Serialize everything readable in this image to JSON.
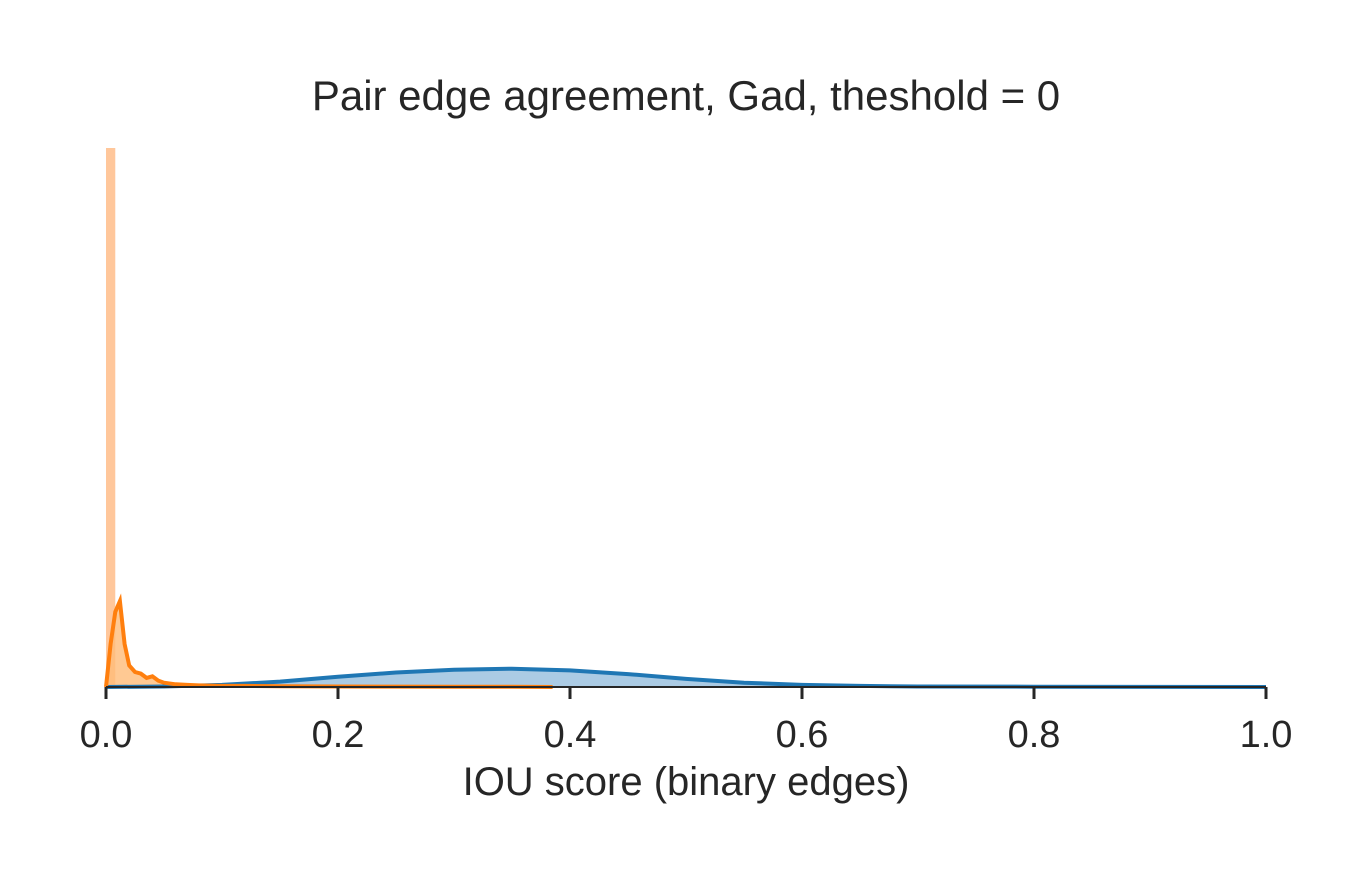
{
  "chart_data": {
    "type": "area",
    "title": "Pair edge agreement, Gad, theshold = 0",
    "xlabel": "IOU score (binary edges)",
    "ylabel": "",
    "xlim": [
      0.0,
      1.0
    ],
    "ylim": [
      0,
      1
    ],
    "grid": false,
    "x_ticks": [
      "0.0",
      "0.2",
      "0.4",
      "0.6",
      "0.8",
      "1.0"
    ],
    "colors": {
      "series_a": "#1f77b4",
      "series_b": "#ff7f0e",
      "series_a_fill": "#a6c8e3",
      "series_b_fill": "#ffbb78",
      "series_b_hist": "#ffc79b"
    },
    "series": [
      {
        "name": "series_a",
        "kind": "kde",
        "x": [
          0.0,
          0.05,
          0.1,
          0.15,
          0.2,
          0.25,
          0.3,
          0.35,
          0.4,
          0.45,
          0.5,
          0.55,
          0.6,
          0.65,
          0.7,
          0.8,
          0.9,
          1.0
        ],
        "y": [
          0.0,
          0.001,
          0.004,
          0.01,
          0.019,
          0.027,
          0.032,
          0.034,
          0.031,
          0.024,
          0.015,
          0.008,
          0.004,
          0.002,
          0.001,
          0.0005,
          0.0002,
          0.0
        ]
      },
      {
        "name": "series_b",
        "kind": "kde",
        "x": [
          0.0,
          0.004,
          0.008,
          0.012,
          0.016,
          0.02,
          0.025,
          0.03,
          0.035,
          0.04,
          0.045,
          0.05,
          0.06,
          0.07,
          0.08,
          0.1,
          0.12,
          0.15,
          0.2,
          0.25,
          0.3,
          0.35,
          0.385
        ],
        "y": [
          0.0,
          0.08,
          0.14,
          0.16,
          0.08,
          0.04,
          0.028,
          0.025,
          0.017,
          0.02,
          0.012,
          0.008,
          0.005,
          0.004,
          0.003,
          0.002,
          0.002,
          0.0015,
          0.001,
          0.0008,
          0.0005,
          0.0003,
          0.0
        ]
      },
      {
        "name": "series_b_histogram",
        "kind": "bar",
        "bins": [
          [
            0.0,
            0.008
          ]
        ],
        "values": [
          1.0
        ]
      }
    ]
  }
}
